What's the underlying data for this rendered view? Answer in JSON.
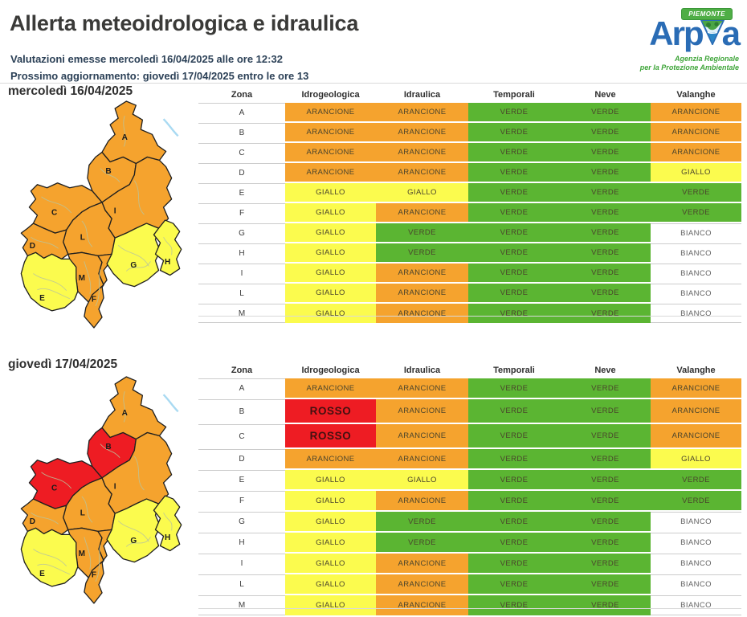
{
  "page": {
    "title": "Allerta meteoidrologica e idraulica",
    "issued_line": "Valutazioni emesse mercoledì 16/04/2025 alle ore 12:32",
    "next_update_line": "Prossimo aggiornamento: giovedì 17/04/2025 entro le ore 13"
  },
  "logo": {
    "name": "Arpa",
    "badge": "PIEMONTE",
    "tagline1": "Agenzia Regionale",
    "tagline2": "per la Protezione Ambientale",
    "brand_blue": "#2a6cb5",
    "brand_green": "#3fa53a"
  },
  "level_colors": {
    "ARANCIONE": "#f5a32e",
    "GIALLO": "#fbfb4e",
    "VERDE": "#5bb532",
    "ROSSO": "#ee1c23",
    "BIANCO": "#ffffff"
  },
  "table_columns": [
    "Zona",
    "Idrogeologica",
    "Idraulica",
    "Temporali",
    "Neve",
    "Valanghe"
  ],
  "days": [
    {
      "title": "mercoledì 16/04/2025",
      "rows": [
        {
          "zona": "A",
          "levels": [
            "ARANCIONE",
            "ARANCIONE",
            "VERDE",
            "VERDE",
            "ARANCIONE"
          ]
        },
        {
          "zona": "B",
          "levels": [
            "ARANCIONE",
            "ARANCIONE",
            "VERDE",
            "VERDE",
            "ARANCIONE"
          ]
        },
        {
          "zona": "C",
          "levels": [
            "ARANCIONE",
            "ARANCIONE",
            "VERDE",
            "VERDE",
            "ARANCIONE"
          ]
        },
        {
          "zona": "D",
          "levels": [
            "ARANCIONE",
            "ARANCIONE",
            "VERDE",
            "VERDE",
            "GIALLO"
          ]
        },
        {
          "zona": "E",
          "levels": [
            "GIALLO",
            "GIALLO",
            "VERDE",
            "VERDE",
            "VERDE"
          ]
        },
        {
          "zona": "F",
          "levels": [
            "GIALLO",
            "ARANCIONE",
            "VERDE",
            "VERDE",
            "VERDE"
          ]
        },
        {
          "zona": "G",
          "levels": [
            "GIALLO",
            "VERDE",
            "VERDE",
            "VERDE",
            "BIANCO"
          ]
        },
        {
          "zona": "H",
          "levels": [
            "GIALLO",
            "VERDE",
            "VERDE",
            "VERDE",
            "BIANCO"
          ]
        },
        {
          "zona": "I",
          "levels": [
            "GIALLO",
            "ARANCIONE",
            "VERDE",
            "VERDE",
            "BIANCO"
          ]
        },
        {
          "zona": "L",
          "levels": [
            "GIALLO",
            "ARANCIONE",
            "VERDE",
            "VERDE",
            "BIANCO"
          ]
        },
        {
          "zona": "M",
          "levels": [
            "GIALLO",
            "ARANCIONE",
            "VERDE",
            "VERDE",
            "BIANCO"
          ]
        }
      ],
      "map": {
        "A": "ARANCIONE",
        "B": "ARANCIONE",
        "C": "ARANCIONE",
        "D": "ARANCIONE",
        "E": "GIALLO",
        "F": "ARANCIONE",
        "G": "GIALLO",
        "H": "GIALLO",
        "I": "ARANCIONE",
        "L": "ARANCIONE",
        "M": "ARANCIONE"
      }
    },
    {
      "title": "giovedì 17/04/2025",
      "rows": [
        {
          "zona": "A",
          "levels": [
            "ARANCIONE",
            "ARANCIONE",
            "VERDE",
            "VERDE",
            "ARANCIONE"
          ]
        },
        {
          "zona": "B",
          "levels": [
            "ROSSO",
            "ARANCIONE",
            "VERDE",
            "VERDE",
            "ARANCIONE"
          ]
        },
        {
          "zona": "C",
          "levels": [
            "ROSSO",
            "ARANCIONE",
            "VERDE",
            "VERDE",
            "ARANCIONE"
          ]
        },
        {
          "zona": "D",
          "levels": [
            "ARANCIONE",
            "ARANCIONE",
            "VERDE",
            "VERDE",
            "GIALLO"
          ]
        },
        {
          "zona": "E",
          "levels": [
            "GIALLO",
            "GIALLO",
            "VERDE",
            "VERDE",
            "VERDE"
          ]
        },
        {
          "zona": "F",
          "levels": [
            "GIALLO",
            "ARANCIONE",
            "VERDE",
            "VERDE",
            "VERDE"
          ]
        },
        {
          "zona": "G",
          "levels": [
            "GIALLO",
            "VERDE",
            "VERDE",
            "VERDE",
            "BIANCO"
          ]
        },
        {
          "zona": "H",
          "levels": [
            "GIALLO",
            "VERDE",
            "VERDE",
            "VERDE",
            "BIANCO"
          ]
        },
        {
          "zona": "I",
          "levels": [
            "GIALLO",
            "ARANCIONE",
            "VERDE",
            "VERDE",
            "BIANCO"
          ]
        },
        {
          "zona": "L",
          "levels": [
            "GIALLO",
            "ARANCIONE",
            "VERDE",
            "VERDE",
            "BIANCO"
          ]
        },
        {
          "zona": "M",
          "levels": [
            "GIALLO",
            "ARANCIONE",
            "VERDE",
            "VERDE",
            "BIANCO"
          ]
        }
      ],
      "map": {
        "A": "ARANCIONE",
        "B": "ROSSO",
        "C": "ROSSO",
        "D": "ARANCIONE",
        "E": "GIALLO",
        "F": "ARANCIONE",
        "G": "GIALLO",
        "H": "GIALLO",
        "I": "ARANCIONE",
        "L": "ARANCIONE",
        "M": "ARANCIONE"
      }
    }
  ]
}
